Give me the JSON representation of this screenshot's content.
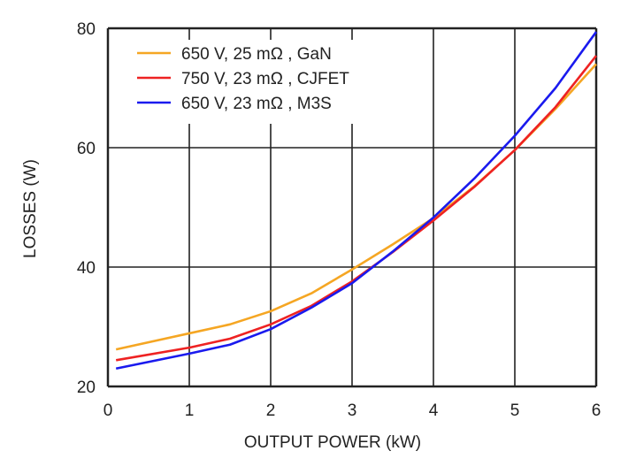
{
  "chart_data": {
    "type": "line",
    "title": "",
    "xlabel": "OUTPUT POWER (kW)",
    "ylabel": "LOSSES (W)",
    "xlim": [
      0,
      6
    ],
    "ylim": [
      20,
      80
    ],
    "xticks": [
      "0",
      "1",
      "2",
      "3",
      "4",
      "5",
      "6"
    ],
    "yticks": [
      "20",
      "40",
      "60",
      "80"
    ],
    "grid": true,
    "legend_position": "top-left",
    "series": [
      {
        "name": "650 V, 25 mΩ , GaN",
        "color": "#f5a623",
        "x": [
          0.1,
          1,
          1.5,
          2,
          2.5,
          3,
          3.5,
          4,
          4.5,
          5,
          5.5,
          6
        ],
        "y": [
          26.2,
          28.9,
          30.4,
          32.6,
          35.6,
          39.6,
          43.8,
          48.2,
          53.5,
          59.6,
          66.5,
          74.0
        ]
      },
      {
        "name": "750 V, 23 mΩ , CJFET",
        "color": "#ee2222",
        "x": [
          0.1,
          1,
          1.5,
          2,
          2.5,
          3,
          3.5,
          4,
          4.5,
          5,
          5.5,
          6
        ],
        "y": [
          24.4,
          26.5,
          28.0,
          30.4,
          33.5,
          37.6,
          42.5,
          47.8,
          53.4,
          59.6,
          66.8,
          75.4
        ]
      },
      {
        "name": "650 V, 23 mΩ , M3S",
        "color": "#1a1aee",
        "x": [
          0.1,
          1,
          1.5,
          2,
          2.5,
          3,
          3.5,
          4,
          4.5,
          5,
          5.5,
          6
        ],
        "y": [
          23.0,
          25.5,
          27.0,
          29.6,
          33.2,
          37.3,
          42.6,
          48.3,
          54.8,
          62.0,
          70.0,
          79.4
        ]
      }
    ]
  }
}
